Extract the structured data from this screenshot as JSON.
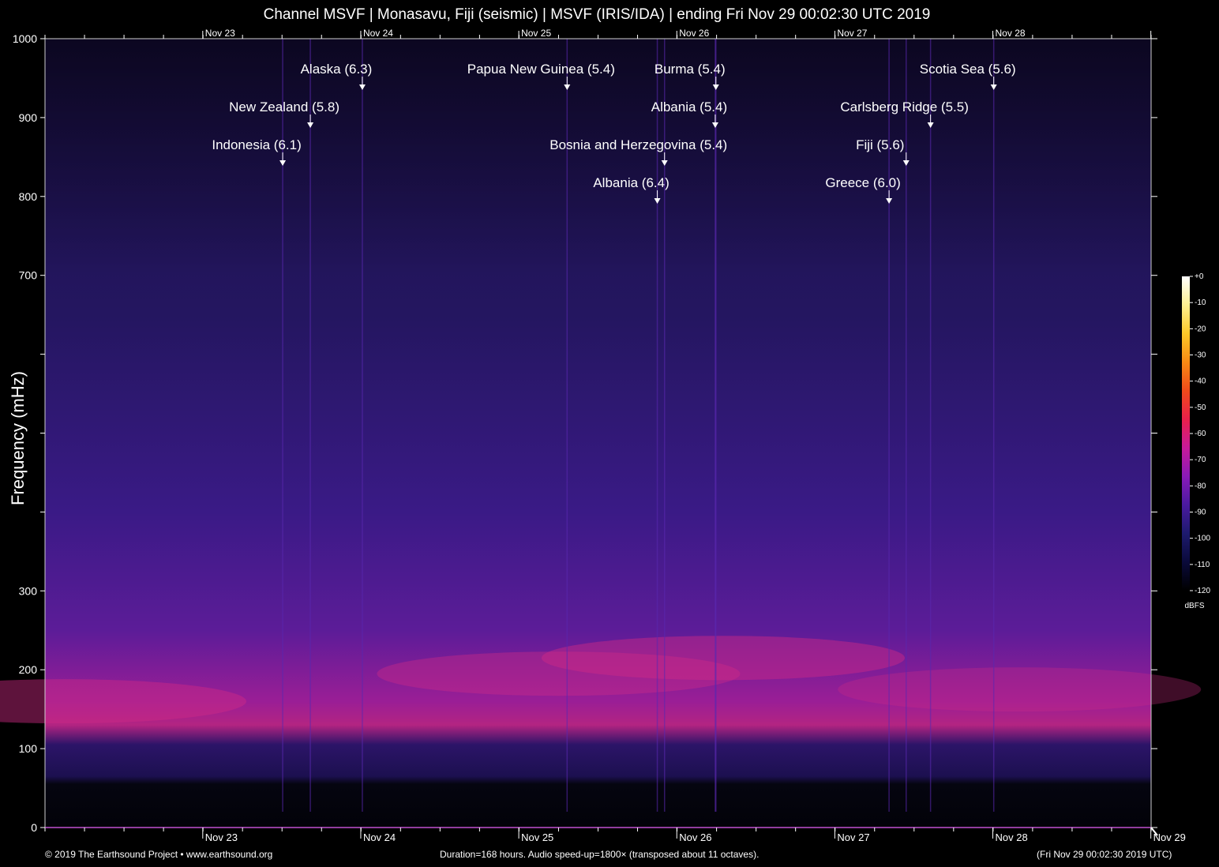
{
  "title": "Channel MSVF | Monasavu, Fiji (seismic) | MSVF (IRIS/IDA) | ending Fri Nov 29 00:02:30 UTC 2019",
  "footer": {
    "left": "© 2019 The Earthsound Project • www.earthsound.org",
    "center": "Duration=168 hours. Audio speed-up=1800× (transposed about 11 octaves).",
    "right": "(Fri Nov 29 00:02:30 2019 UTC)"
  },
  "chart_data": {
    "type": "heatmap",
    "ylabel": "Frequency (mHz)",
    "ylim": [
      0,
      1000
    ],
    "y_ticks": [
      0,
      100,
      200,
      300,
      400,
      500,
      600,
      700,
      800,
      900,
      1000
    ],
    "y_tick_labels": [
      "0",
      "100",
      "200",
      "300",
      "",
      "",
      "",
      "700",
      "800",
      "900",
      "1000"
    ],
    "x_unit": "hours before end",
    "xlim": [
      -168,
      0
    ],
    "x_ticks": [
      {
        "t": -144.04,
        "top": "Nov 23",
        "bottom": "Nov 23"
      },
      {
        "t": -120.04,
        "top": "Nov 24",
        "bottom": "Nov 24"
      },
      {
        "t": -96.04,
        "top": "Nov 25",
        "bottom": "Nov 25"
      },
      {
        "t": -72.04,
        "top": "Nov 26",
        "bottom": "Nov 26"
      },
      {
        "t": -48.04,
        "top": "Nov 27",
        "bottom": "Nov 27"
      },
      {
        "t": -24.04,
        "top": "Nov 28",
        "bottom": "Nov 28"
      },
      {
        "t": -0.04,
        "top": "",
        "bottom": "Nov 29"
      }
    ],
    "events": [
      {
        "label": "Indonesia (6.1)",
        "t": -131.9,
        "row": 3
      },
      {
        "label": "New Zealand (5.8)",
        "t": -127.7,
        "row": 2
      },
      {
        "label": "Alaska (6.3)",
        "t": -119.8,
        "row": 1
      },
      {
        "label": "Papua New Guinea (5.4)",
        "t": -88.7,
        "row": 1
      },
      {
        "label": "Albania (6.4)",
        "t": -75.0,
        "row": 4
      },
      {
        "label": "Albania (5.4)",
        "t": -66.2,
        "row": 2
      },
      {
        "label": "Bosnia and Herzegovina (5.4)",
        "t": -73.9,
        "row": 3
      },
      {
        "label": "Burma (5.4)",
        "t": -66.1,
        "row": 1
      },
      {
        "label": "Greece (6.0)",
        "t": -39.8,
        "row": 4
      },
      {
        "label": "Fiji (5.6)",
        "t": -37.2,
        "row": 3
      },
      {
        "label": "Carlsberg Ridge (5.5)",
        "t": -33.5,
        "row": 2
      },
      {
        "label": "Scotia Sea (5.6)",
        "t": -23.9,
        "row": 1
      }
    ],
    "colorbar": {
      "unit": "dBFS",
      "range": [
        -120,
        0
      ],
      "ticks": [
        "+0",
        "-10",
        "-20",
        "-30",
        "-40",
        "-50",
        "-60",
        "-70",
        "-80",
        "-90",
        "-100",
        "-110",
        "-120"
      ],
      "colors": [
        "#000000",
        "#0a0a3a",
        "#1d1a6e",
        "#4a1aa0",
        "#8a1ab8",
        "#c81a9a",
        "#e8204a",
        "#f04a1a",
        "#f88a14",
        "#fcc828",
        "#fef090",
        "#ffffff"
      ]
    },
    "grid": false
  }
}
